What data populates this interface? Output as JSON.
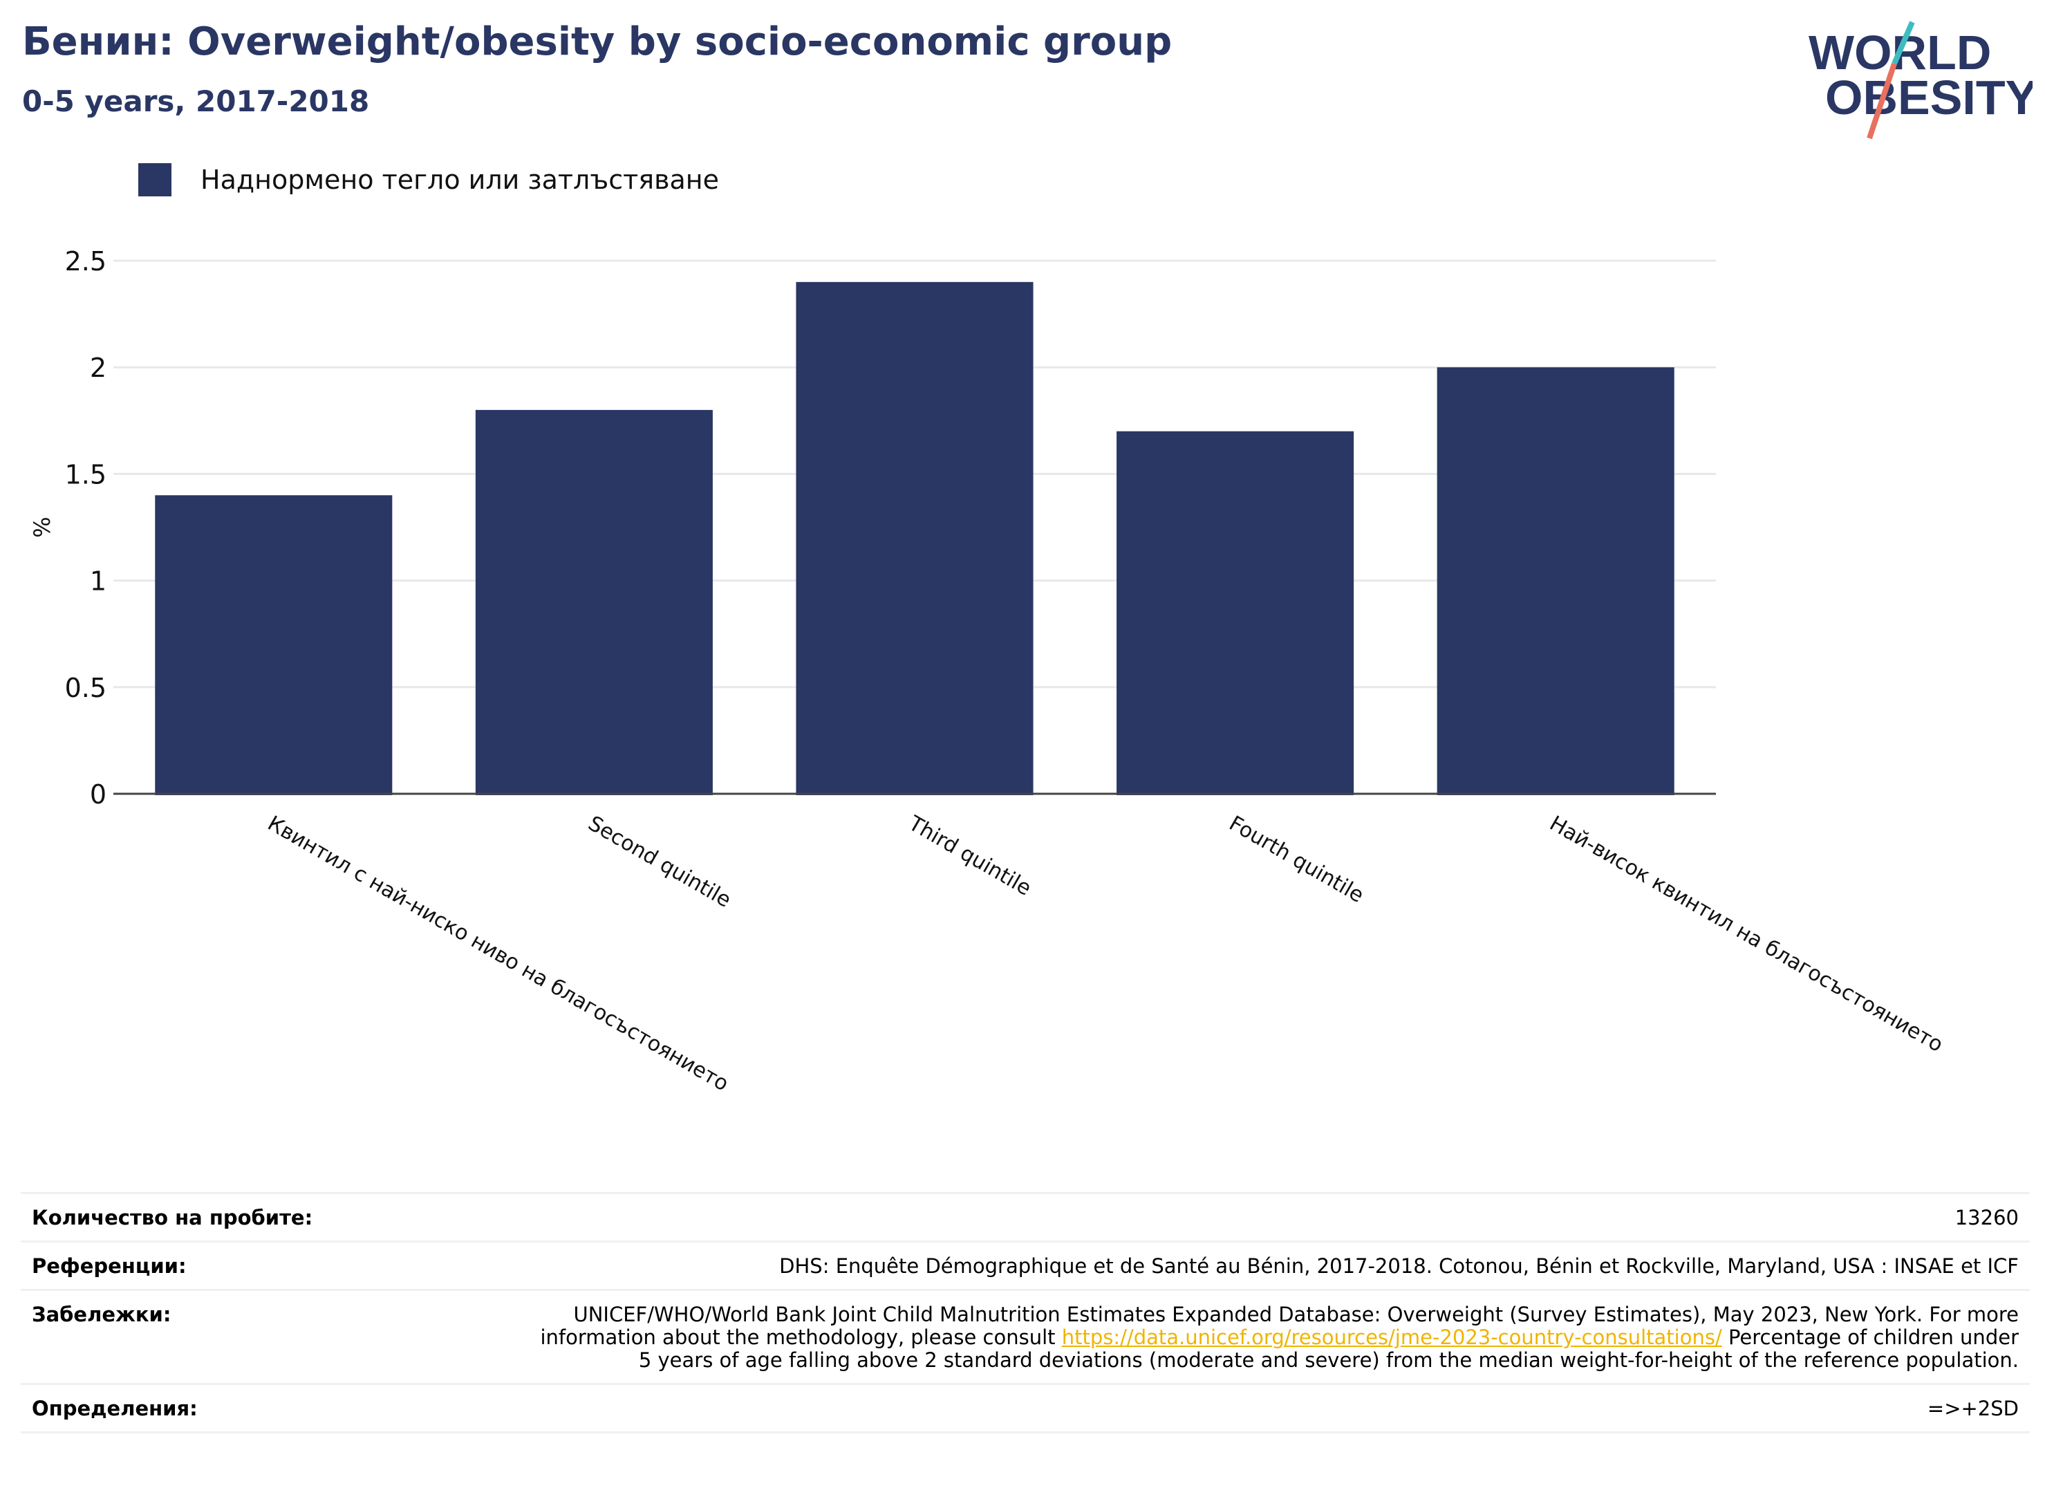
{
  "header": {
    "title": "Бенин: Overweight/obesity by socio-economic group",
    "subtitle": "0-5 years, 2017-2018"
  },
  "logo": {
    "line1": "WORLD",
    "line2": "OBESITY",
    "colors": {
      "text": "#2a3764",
      "teal": "#3dbdbf",
      "coral": "#e8705e"
    }
  },
  "chart_data": {
    "type": "bar",
    "title": "Бенин: Overweight/obesity by socio-economic group",
    "subtitle": "0-5 years, 2017-2018",
    "categories": [
      "Квинтил с най-ниско ниво на благосъстоянието",
      "Second quintile",
      "Third quintile",
      "Fourth quintile",
      "Най-висок квинтил на благосъстоянието"
    ],
    "series": [
      {
        "name": "Наднормено тегло или затлъстяване",
        "values": [
          1.4,
          1.8,
          2.4,
          1.7,
          2.0
        ],
        "color": "#2a3764"
      }
    ],
    "ylabel": "%",
    "xlabel": "",
    "ylim": [
      0,
      2.5
    ],
    "yticks": [
      0,
      0.5,
      1,
      1.5,
      2,
      2.5
    ],
    "ytick_labels": [
      "0",
      "0.5",
      "1",
      "1.5",
      "2",
      "2.5"
    ],
    "grid": true,
    "legend_position": "top-left"
  },
  "meta": {
    "sample_label": "Количество на пробите:",
    "sample_value": "13260",
    "refs_label": "Референции:",
    "refs_value": "DHS: Enquête Démographique et de Santé au Bénin, 2017-2018. Cotonou, Bénin et Rockville, Maryland, USA : INSAE et ICF",
    "notes_label": "Забележки:",
    "notes_before": "UNICEF/WHO/World Bank Joint Child Malnutrition Estimates Expanded Database: Overweight (Survey Estimates), May 2023, New York. For more information about the methodology, please consult",
    "notes_link": "https://data.unicef.org/resources/jme-2023-country-consultations/",
    "notes_after": "Percentage of children under 5 years of age falling above 2 standard deviations (moderate and severe) from the median weight-for-height of the reference population.",
    "defs_label": "Определения:",
    "defs_value": "=>+2SD"
  }
}
